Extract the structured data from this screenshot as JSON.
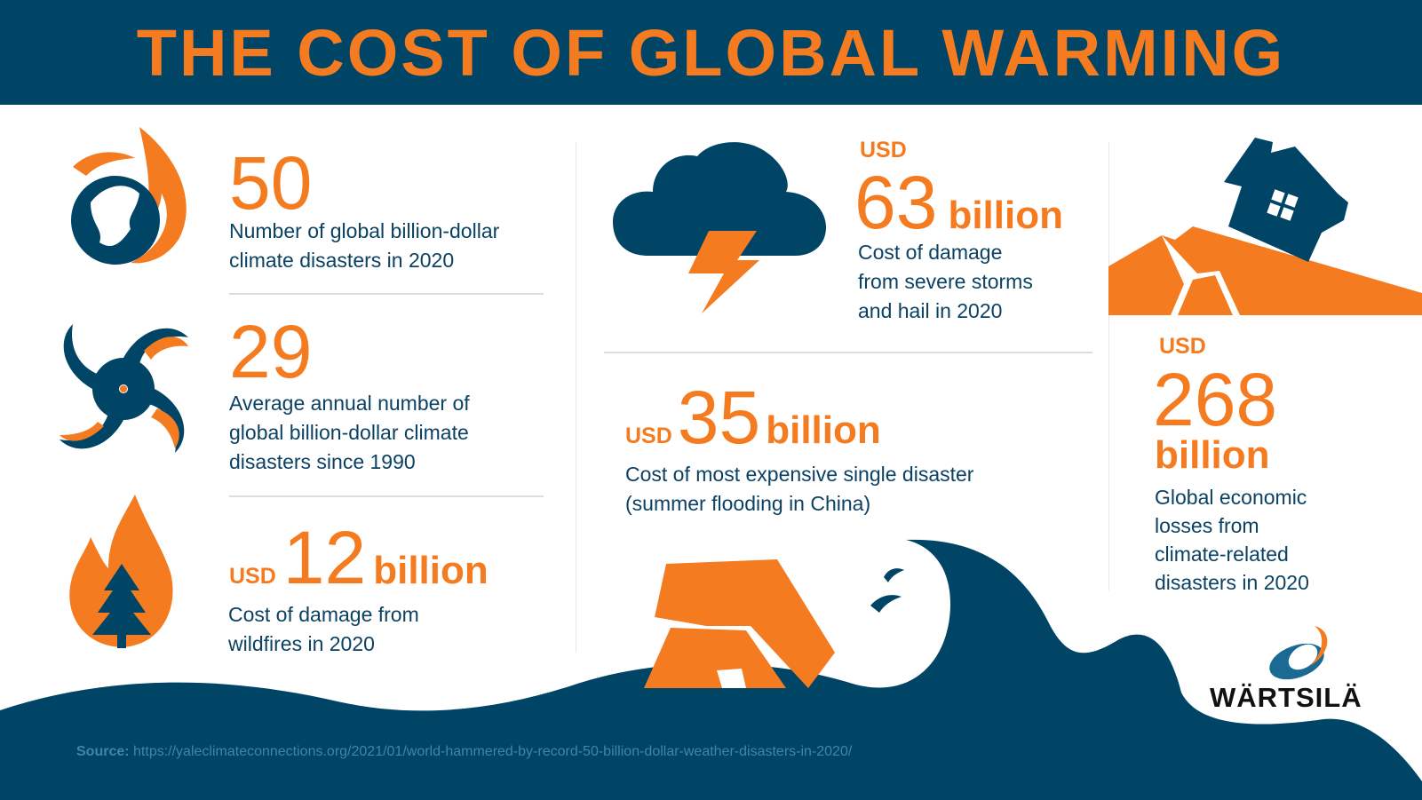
{
  "title": "THE COST OF GLOBAL WARMING",
  "left": [
    {
      "number": "50",
      "description": [
        "Number of global billion-dollar",
        "climate disasters in 2020"
      ],
      "icon": "burning-globe-icon"
    },
    {
      "number": "29",
      "description": [
        "Average annual number of",
        "global billion-dollar climate",
        "disasters since 1990"
      ],
      "icon": "hurricane-icon"
    },
    {
      "prefix": "USD",
      "number": "12",
      "unit": "billion",
      "description": [
        "Cost of damage from",
        "wildfires in 2020"
      ],
      "icon": "wildfire-icon"
    }
  ],
  "middle": [
    {
      "prefix": "USD",
      "number": "63",
      "unit": "billion",
      "description": [
        "Cost of damage",
        "from severe storms",
        "and hail in 2020"
      ],
      "icon": "storm-cloud-icon"
    },
    {
      "prefix": "USD",
      "number": "35",
      "unit": "billion",
      "description": [
        "Cost of most expensive single disaster",
        "(summer flooding in China)"
      ],
      "icon": "flooded-house-icon"
    }
  ],
  "right": {
    "prefix": "USD",
    "number": "268",
    "unit": "billion",
    "description": [
      "Global economic",
      "losses from",
      "climate-related",
      "disasters in 2020"
    ],
    "icon": "earthquake-house-icon"
  },
  "logo": "WÄRTSILÄ",
  "source": {
    "label": "Source:",
    "url": "https://yaleclimateconnections.org/2021/01/world-hammered-by-record-50-billion-dollar-weather-disasters-in-2020/"
  },
  "colors": {
    "navy": "#004466",
    "orange": "#f47b20"
  }
}
